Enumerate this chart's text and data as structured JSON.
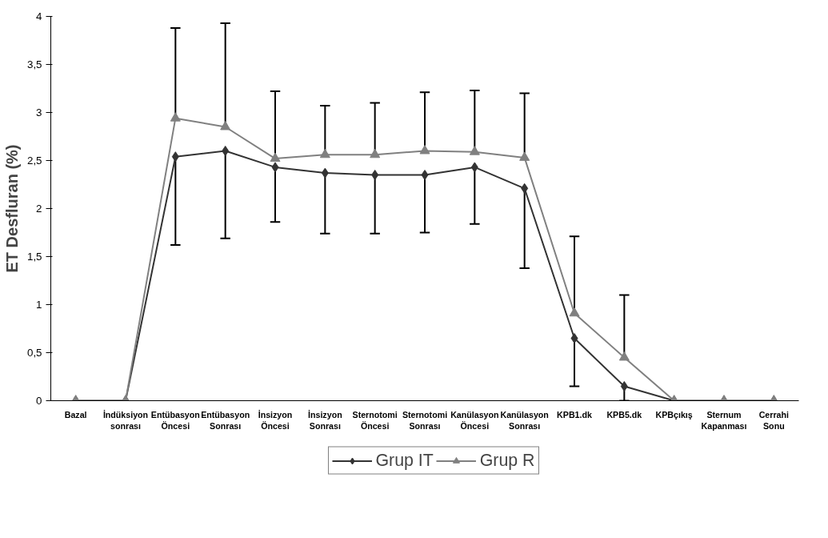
{
  "chart_data": {
    "type": "line",
    "ylabel": "ET Desfluran (%)",
    "categories": [
      "Bazal",
      "İndüksiyon\nsonrası",
      "Entübasyon\nÖncesi",
      "Entübasyon\nSonrası",
      "İnsizyon\nÖncesi",
      "İnsizyon\nSonrası",
      "Sternotomi\nÖncesi",
      "Sternotomi\nSonrası",
      "Kanülasyon\nÖncesi",
      "Kanülasyon\nSonrası",
      "KPB1.dk",
      "KPB5.dk",
      "KPBçıkış",
      "Sternum\nKapanması",
      "Cerrahi\nSonu"
    ],
    "series": [
      {
        "name": "Grup IT",
        "color": "#333333",
        "marker": "diamond",
        "values": [
          0,
          0,
          2.54,
          2.6,
          2.43,
          2.37,
          2.35,
          2.35,
          2.43,
          2.21,
          0.65,
          0.15,
          0,
          0,
          0
        ],
        "errors": [
          null,
          null,
          [
            1.62,
            2.54
          ],
          [
            1.69,
            2.6
          ],
          [
            1.86,
            2.43
          ],
          [
            1.74,
            2.37
          ],
          [
            1.74,
            2.35
          ],
          [
            1.75,
            2.35
          ],
          [
            1.84,
            2.43
          ],
          [
            1.38,
            2.21
          ],
          [
            0.15,
            0.65
          ],
          [
            0.0,
            0.15
          ],
          null,
          null,
          null
        ]
      },
      {
        "name": "Grup R",
        "color": "#808080",
        "marker": "triangle",
        "values": [
          0,
          0,
          2.94,
          2.85,
          2.52,
          2.56,
          2.56,
          2.6,
          2.59,
          2.53,
          0.91,
          0.45,
          0,
          0,
          0
        ],
        "errors": [
          null,
          null,
          [
            2.94,
            3.88
          ],
          [
            2.85,
            3.93
          ],
          [
            2.52,
            3.22
          ],
          [
            2.56,
            3.07
          ],
          [
            2.56,
            3.1
          ],
          [
            2.6,
            3.21
          ],
          [
            2.59,
            3.23
          ],
          [
            2.53,
            3.2
          ],
          [
            0.91,
            1.71
          ],
          [
            0.45,
            1.1
          ],
          null,
          null,
          null
        ]
      }
    ],
    "ylim": [
      0,
      4
    ],
    "yticks": [
      0,
      {
        "value": 0.5,
        "label": "0,5"
      },
      1,
      {
        "value": 1.5,
        "label": "1,5"
      },
      2,
      {
        "value": 2.5,
        "label": "2,5"
      },
      3,
      {
        "value": 3.5,
        "label": "3,5"
      },
      4
    ],
    "grid": false,
    "legend": "bottom",
    "line_style": "solid"
  }
}
